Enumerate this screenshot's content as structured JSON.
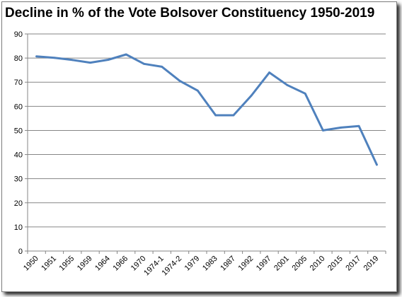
{
  "chart_data": {
    "type": "line",
    "title": "Decline in % of the Vote Bolsover Constituency 1950-2019",
    "xlabel": "",
    "ylabel": "",
    "categories": [
      "1950",
      "1951",
      "1955",
      "1959",
      "1964",
      "1966",
      "1970",
      "1974-1",
      "1974-2",
      "1979",
      "1983",
      "1987",
      "1992",
      "1997",
      "2001",
      "2005",
      "2010",
      "2015",
      "2017",
      "2019"
    ],
    "series": [
      {
        "values": [
          80.7,
          80.1,
          79.2,
          78.1,
          79.3,
          81.5,
          77.6,
          76.4,
          70.5,
          66.5,
          56.3,
          56.3,
          64.5,
          74.0,
          68.8,
          65.3,
          50.0,
          51.2,
          51.8,
          35.8
        ],
        "color": "#4f81bd"
      }
    ],
    "ylim": [
      0,
      90
    ],
    "yticks": [
      "0",
      "10",
      "20",
      "30",
      "40",
      "50",
      "60",
      "70",
      "80",
      "90"
    ],
    "grid": true,
    "legend": "none"
  }
}
